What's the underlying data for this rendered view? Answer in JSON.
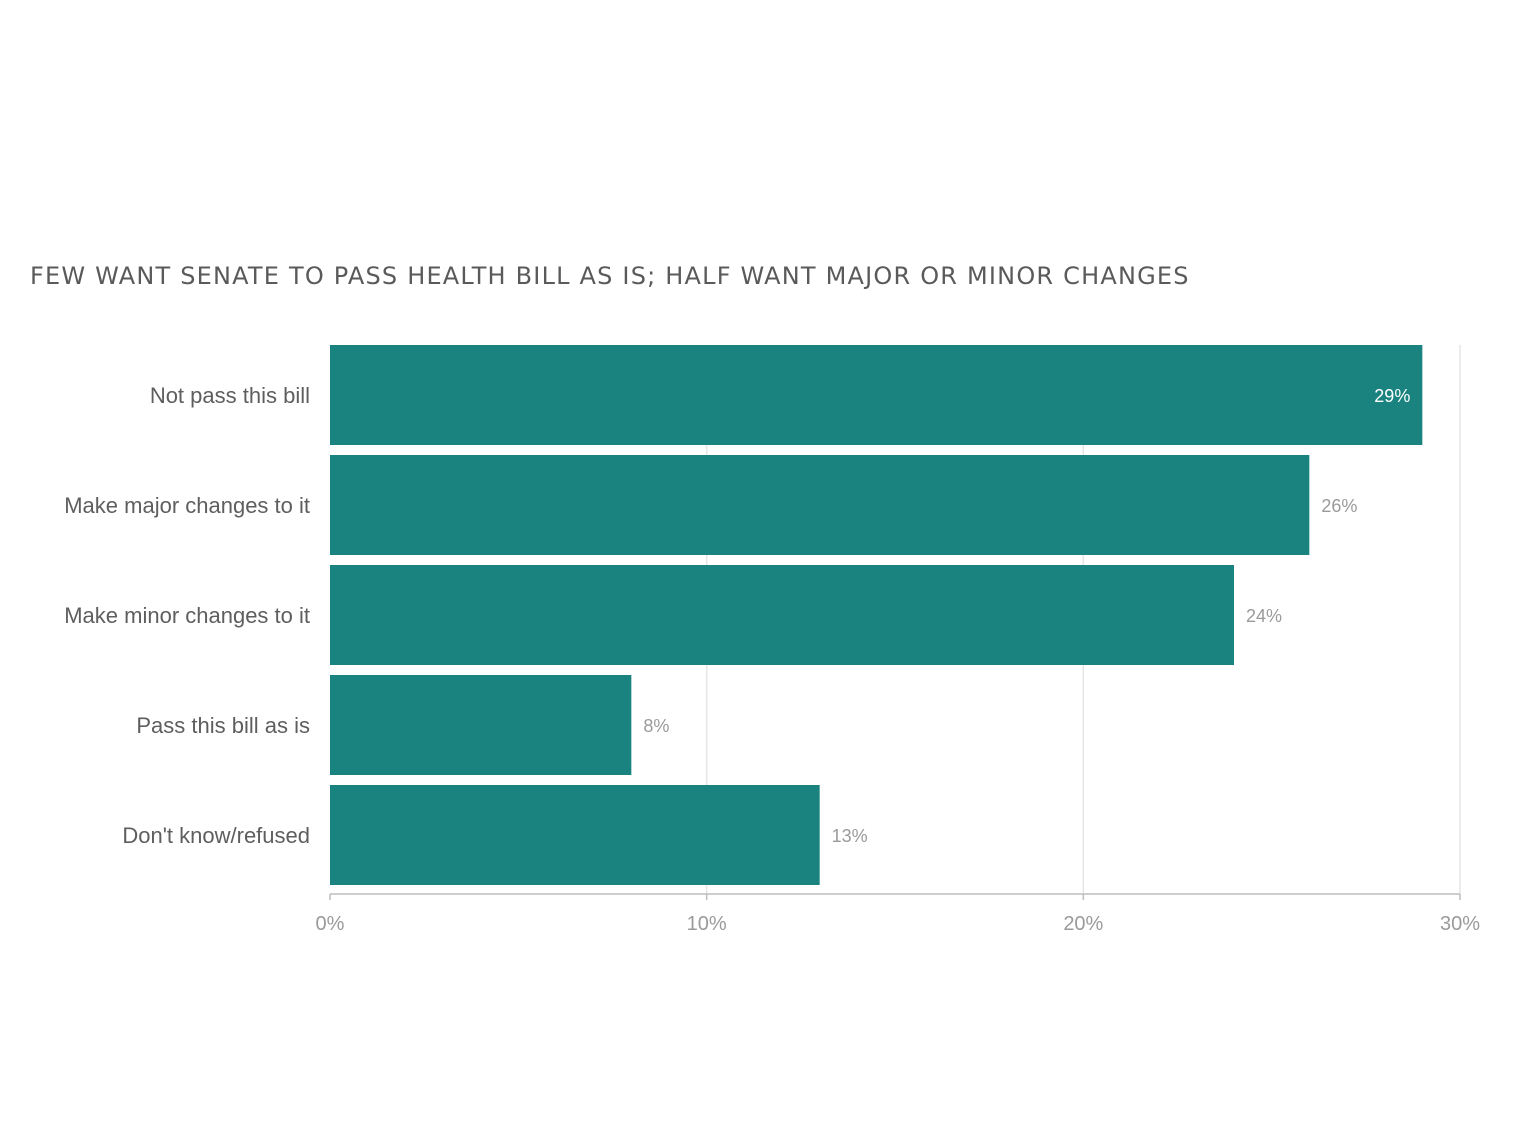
{
  "chart_data": {
    "type": "bar",
    "orientation": "horizontal",
    "title": "FEW WANT SENATE TO PASS HEALTH BILL AS IS; HALF WANT MAJOR OR MINOR CHANGES",
    "categories": [
      "Not pass this bill",
      "Make major changes to it",
      "Make minor changes to it",
      "Pass this bill as is",
      "Don't know/refused"
    ],
    "values": [
      29,
      26,
      24,
      8,
      13
    ],
    "value_labels": [
      "29%",
      "26%",
      "24%",
      "8%",
      "13%"
    ],
    "xlim": [
      0,
      30
    ],
    "x_ticks": [
      0,
      10,
      20,
      30
    ],
    "x_tick_labels": [
      "0%",
      "10%",
      "20%",
      "30%"
    ],
    "grid": true,
    "bar_color": "#1a837f"
  }
}
